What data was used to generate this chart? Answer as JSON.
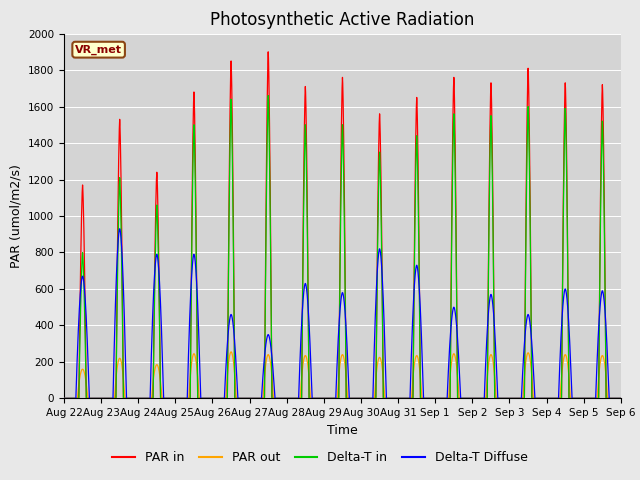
{
  "title": "Photosynthetic Active Radiation",
  "ylabel": "PAR (umol/m2/s)",
  "xlabel": "Time",
  "station_label": "VR_met",
  "ylim": [
    0,
    2000
  ],
  "background_color": "#e8e8e8",
  "plot_bg_color": "#d4d4d4",
  "grid_color": "#ffffff",
  "legend": [
    "PAR in",
    "PAR out",
    "Delta-T in",
    "Delta-T Diffuse"
  ],
  "legend_colors": [
    "#ff0000",
    "#ffa500",
    "#00cc00",
    "#0000ff"
  ],
  "tick_labels": [
    "Aug 22",
    "Aug 23",
    "Aug 24",
    "Aug 25",
    "Aug 26",
    "Aug 27",
    "Aug 28",
    "Aug 29",
    "Aug 30",
    "Aug 31",
    "Sep 1",
    "Sep 2",
    "Sep 3",
    "Sep 4",
    "Sep 5",
    "Sep 6"
  ],
  "num_days": 15,
  "day_peaks_PAR_in": [
    1170,
    1530,
    1240,
    1680,
    1850,
    1900,
    1710,
    1760,
    1560,
    1650,
    1760,
    1730,
    1810,
    1730,
    1720
  ],
  "day_peaks_PAR_out": [
    160,
    220,
    185,
    245,
    255,
    240,
    235,
    240,
    225,
    235,
    245,
    240,
    250,
    240,
    235
  ],
  "day_peaks_DeltaT_in": [
    800,
    1210,
    1060,
    1500,
    1640,
    1660,
    1500,
    1500,
    1350,
    1440,
    1560,
    1550,
    1600,
    1590,
    1520
  ],
  "day_peaks_DeltaT_diff": [
    670,
    930,
    790,
    790,
    460,
    350,
    630,
    580,
    820,
    730,
    500,
    570,
    460,
    600,
    590
  ],
  "title_fontsize": 12,
  "label_fontsize": 9,
  "tick_fontsize": 7.5
}
